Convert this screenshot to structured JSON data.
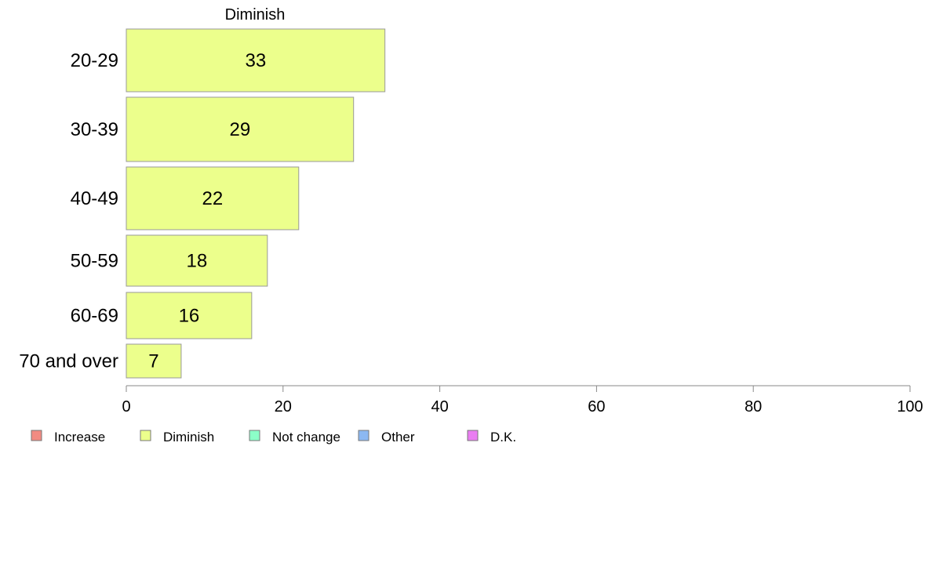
{
  "chart_data": {
    "type": "bar",
    "orientation": "horizontal",
    "title": "Diminish",
    "categories": [
      "20-29",
      "30-39",
      "40-49",
      "50-59",
      "60-69",
      "70 and over"
    ],
    "series": [
      {
        "name": "Diminish",
        "values": [
          33,
          29,
          22,
          18,
          16,
          7
        ],
        "color": "#ecff8c"
      }
    ],
    "data_labels": [
      "33",
      "29",
      "22",
      "18",
      "16",
      "7"
    ],
    "xlim": [
      0,
      100
    ],
    "x_ticks": [
      0,
      20,
      40,
      60,
      80,
      100
    ],
    "x_tick_labels": [
      "0",
      "20",
      "40",
      "60",
      "80",
      "100"
    ],
    "grid": false,
    "legend": {
      "placement": "bottom-left",
      "entries": [
        {
          "label": "Increase",
          "color": "#f28b82"
        },
        {
          "label": "Diminish",
          "color": "#ecff8c"
        },
        {
          "label": "Not change",
          "color": "#8cffc8"
        },
        {
          "label": "Other",
          "color": "#8cb8f2"
        },
        {
          "label": "D.K.",
          "color": "#ea7df2"
        }
      ]
    }
  }
}
